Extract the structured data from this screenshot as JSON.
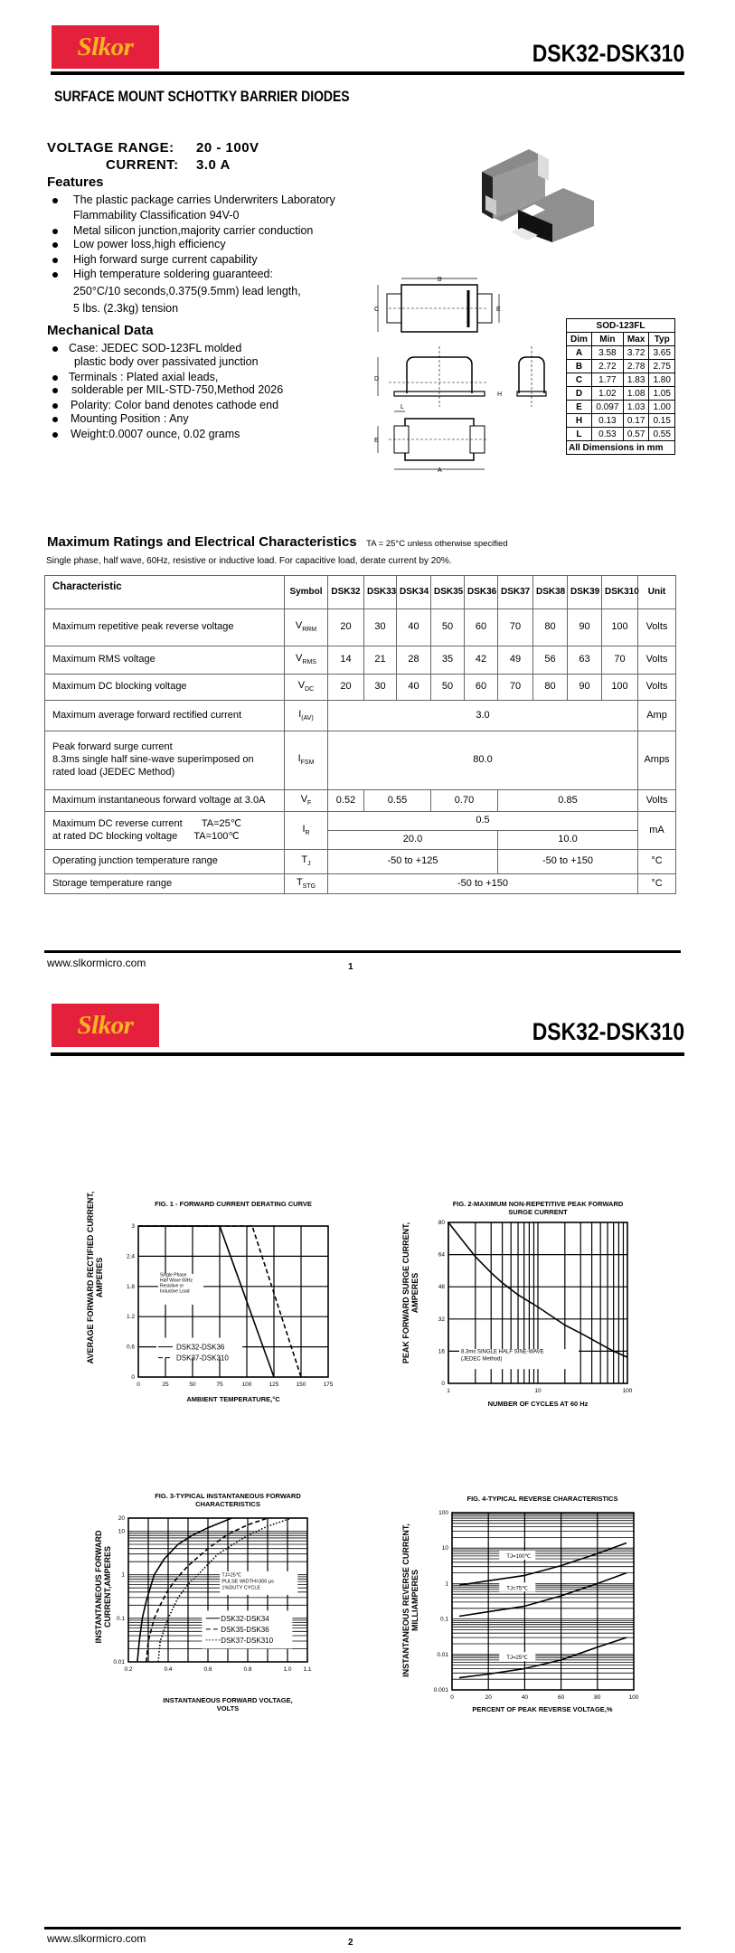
{
  "pages": [
    {
      "logo_text": "Slkor",
      "title": "DSK32-DSK310",
      "footer_url": "www.slkormicro.com",
      "page_number": "1"
    },
    {
      "logo_text": "Slkor",
      "title": "DSK32-DSK310",
      "footer_url": "www.slkormicro.com",
      "page_number": "2"
    }
  ],
  "subtitle": "SURFACE MOUNT SCHOTTKY BARRIER DIODES",
  "ratings_summary": {
    "voltage_label": "VOLTAGE  RANGE:",
    "voltage_value": "20 - 100V",
    "current_label": "CURRENT:",
    "current_value": "3.0 A"
  },
  "features": {
    "heading": "Features",
    "items": [
      "The plastic package carries Underwriters Laboratory",
      "Flammability Classification 94V-0",
      "Metal silicon junction,majority carrier conduction",
      "Low power loss,high efficiency",
      "High forward surge current capability",
      "High temperature soldering guaranteed:",
      "250°C/10 seconds,0.375(9.5mm) lead length,",
      "5 lbs. (2.3kg) tension"
    ]
  },
  "mechanical": {
    "heading": "Mechanical Data",
    "items": [
      "Case: JEDEC SOD-123FL molded",
      "plastic body over passivated junction",
      "Terminals : Plated axial leads,",
      "solderable per MIL-STD-750,Method 2026",
      "Polarity: Color band denotes cathode end",
      "Mounting Position  : Any",
      "Weight:0.0007 ounce, 0.02 grams"
    ]
  },
  "drawing": {
    "labels": {
      "A": "A",
      "B": "B",
      "C": "C",
      "D": "D",
      "E": "E",
      "H": "H",
      "L": "L"
    }
  },
  "dim_table": {
    "title": "SOD-123FL",
    "headers": [
      "Dim",
      "Min",
      "Max",
      "Typ"
    ],
    "rows": [
      [
        "A",
        "3.58",
        "3.72",
        "3.65"
      ],
      [
        "B",
        "2.72",
        "2.78",
        "2.75"
      ],
      [
        "C",
        "1.77",
        "1.83",
        "1.80"
      ],
      [
        "D",
        "1.02",
        "1.08",
        "1.05"
      ],
      [
        "E",
        "0.097",
        "1.03",
        "1.00"
      ],
      [
        "H",
        "0.13",
        "0.17",
        "0.15"
      ],
      [
        "L",
        "0.53",
        "0.57",
        "0.55"
      ]
    ],
    "footer": "All Dimensions in mm"
  },
  "max_ratings": {
    "heading": "Maximum Ratings and Electrical Characteristics",
    "condition": "TA = 25°C unless otherwise specified",
    "note": "Single phase, half wave, 60Hz, resistive or inductive load. For capacitive load, derate current by 20%.",
    "headers": [
      "Characteristic",
      "Symbol",
      "DSK32",
      "DSK33",
      "DSK34",
      "DSK35",
      "DSK36",
      "DSK37",
      "DSK38",
      "DSK39",
      "DSK310",
      "Unit"
    ],
    "rows": [
      {
        "char": [
          "Maximum repetitive peak reverse voltage"
        ],
        "sym": "V",
        "sub": "RRM",
        "unit": "Volts",
        "cells": [
          [
            [
              "20",
              1
            ],
            [
              "30",
              1
            ],
            [
              "40",
              1
            ],
            [
              "50",
              1
            ],
            [
              "60",
              1
            ],
            [
              "70",
              1
            ],
            [
              "80",
              1
            ],
            [
              "90",
              1
            ],
            [
              "100",
              1
            ]
          ]
        ]
      },
      {
        "char": [
          "Maximum RMS voltage"
        ],
        "sym": "V",
        "sub": "RMS",
        "unit": "Volts",
        "cells": [
          [
            [
              "14",
              1
            ],
            [
              "21",
              1
            ],
            [
              "28",
              1
            ],
            [
              "35",
              1
            ],
            [
              "42",
              1
            ],
            [
              "49",
              1
            ],
            [
              "56",
              1
            ],
            [
              "63",
              1
            ],
            [
              "70",
              1
            ]
          ]
        ]
      },
      {
        "char": [
          "Maximum DC blocking voltage"
        ],
        "sym": "V",
        "sub": "DC",
        "unit": "Volts",
        "cells": [
          [
            [
              "20",
              1
            ],
            [
              "30",
              1
            ],
            [
              "40",
              1
            ],
            [
              "50",
              1
            ],
            [
              "60",
              1
            ],
            [
              "70",
              1
            ],
            [
              "80",
              1
            ],
            [
              "90",
              1
            ],
            [
              "100",
              1
            ]
          ]
        ]
      },
      {
        "char": [
          "Maximum average forward rectified current"
        ],
        "sym": "I",
        "sub": "(AV)",
        "unit": "Amp",
        "cells": [
          [
            [
              "3.0",
              9
            ]
          ]
        ]
      },
      {
        "char": [
          "Peak forward surge current",
          "8.3ms single half sine-wave superimposed on",
          "rated load (JEDEC Method)"
        ],
        "sym": "I",
        "sub": "FSM",
        "unit": "Amps",
        "cells": [
          [
            [
              "80.0",
              9
            ]
          ]
        ]
      },
      {
        "char": [
          "Maximum instantaneous forward voltage at 3.0A"
        ],
        "sym": "V",
        "sub": "F",
        "unit": "Volts",
        "cells": [
          [
            [
              "0.52",
              1
            ],
            [
              "0.55",
              2
            ],
            [
              "0.70",
              2
            ],
            [
              "0.85",
              4
            ]
          ]
        ]
      },
      {
        "char": [
          "Maximum DC reverse current       TA=25℃",
          "at rated DC blocking voltage      TA=100℃"
        ],
        "sym": "I",
        "sub": "R",
        "unit": "mA",
        "cells": [
          [
            [
              "0.5",
              9
            ]
          ],
          [
            [
              "20.0",
              5
            ],
            [
              "10.0",
              4
            ]
          ]
        ]
      },
      {
        "char": [
          "Operating junction temperature range"
        ],
        "sym": "T",
        "sub": "J",
        "unit": "°C",
        "cells": [
          [
            [
              "-50 to +125",
              5
            ],
            [
              "-50 to +150",
              4
            ]
          ]
        ]
      },
      {
        "char": [
          "Storage temperature range"
        ],
        "sym": "T",
        "sub": "STG",
        "unit": "°C",
        "cells": [
          [
            [
              "-50 to +150",
              9
            ]
          ]
        ]
      }
    ]
  },
  "chart_data": [
    {
      "type": "line",
      "title": "FIG. 1 - FORWARD CURRENT DERATING CURVE",
      "xlabel": "AMBIENT TEMPERATURE,°C",
      "ylabel": [
        "AVERAGE FORWARD RECTIFIED CURRENT,",
        "AMPERES"
      ],
      "xlim": [
        0,
        175
      ],
      "ylim": [
        0,
        3
      ],
      "xscale": "linear",
      "yscale": "linear",
      "xticks": [
        "0",
        "25",
        "50",
        "75",
        "100",
        "125",
        "150",
        "175"
      ],
      "yticks": [
        "0",
        "0.6",
        "1.2",
        "1.8",
        "2.4",
        "3"
      ],
      "grid": true,
      "annotation": [
        "Single Phase",
        "Half Wave 60Hz",
        "Resistive or",
        "Inductive Load"
      ],
      "legend_placement": "bottom-left",
      "series": [
        {
          "name": "DSK32-DSK36",
          "style": "solid",
          "x": [
            0,
            75,
            125
          ],
          "y": [
            3,
            3,
            0
          ]
        },
        {
          "name": "DSK37-DSK310",
          "style": "dashed",
          "x": [
            0,
            105,
            150
          ],
          "y": [
            3,
            3,
            0
          ]
        }
      ]
    },
    {
      "type": "line",
      "title": [
        "FIG. 2-MAXIMUM NON-REPETITIVE PEAK FORWARD",
        "SURGE CURRENT"
      ],
      "xlabel": "NUMBER OF CYCLES AT 60 Hz",
      "ylabel": [
        "PEAK  FORWARD SURGE CURRENT,",
        "AMPERES"
      ],
      "xlim": [
        1,
        100
      ],
      "ylim": [
        0,
        80
      ],
      "xscale": "log",
      "yscale": "linear",
      "xticks": [
        "1",
        "10",
        "100"
      ],
      "yticks": [
        "0",
        "16",
        "32",
        "48",
        "64",
        "80"
      ],
      "grid": true,
      "annotation": [
        "8.3ms SINGLE HALF SINE-WAVE",
        "(JEDEC Method)"
      ],
      "series": [
        {
          "style": "solid",
          "x": [
            1,
            1.5,
            2,
            3,
            4,
            6,
            10,
            20,
            30,
            50,
            70,
            100
          ],
          "y": [
            80,
            70,
            63,
            55,
            50,
            44,
            38,
            29,
            25,
            19.5,
            16,
            13
          ]
        }
      ]
    },
    {
      "type": "line",
      "title": [
        "FIG. 3-TYPICAL INSTANTANEOUS FORWARD",
        "CHARACTERISTICS"
      ],
      "xlabel": [
        "INSTANTANEOUS FORWARD VOLTAGE,",
        "VOLTS"
      ],
      "ylabel": [
        "INSTANTANEOUS FORWARD",
        "CURRENT,AMPERES"
      ],
      "xlim": [
        0.2,
        1.1
      ],
      "ylim": [
        0.01,
        20
      ],
      "xscale": "linear",
      "yscale": "log",
      "xticks": [
        "0.2",
        "0.4",
        "0.6",
        "0.8",
        "1.0",
        "1.1"
      ],
      "yticks": [
        "0.01",
        "0.1",
        "1",
        "10",
        "20"
      ],
      "grid": true,
      "annotation": [
        "TJ=25℃",
        "PULSE WIDTH=300 μs",
        "1%DUTY CYCLE"
      ],
      "legend_placement": "bottom-right",
      "series": [
        {
          "name": "DSK32-DSK34",
          "style": "solid",
          "x": [
            0.245,
            0.255,
            0.27,
            0.29,
            0.33,
            0.38,
            0.45,
            0.52,
            0.6,
            0.72
          ],
          "y": [
            0.01,
            0.03,
            0.1,
            0.25,
            1,
            2.3,
            5,
            8,
            12,
            20
          ]
        },
        {
          "name": "DSK35-DSK36",
          "style": "dashed",
          "x": [
            0.29,
            0.3,
            0.33,
            0.36,
            0.4,
            0.45,
            0.5,
            0.6,
            0.7,
            0.8,
            0.9
          ],
          "y": [
            0.01,
            0.03,
            0.1,
            0.2,
            0.45,
            0.9,
            1.6,
            4,
            8.5,
            14,
            20
          ]
        },
        {
          "name": "DSK37-DSK310",
          "style": "dotted",
          "x": [
            0.35,
            0.36,
            0.4,
            0.45,
            0.5,
            0.55,
            0.65,
            0.8,
            0.9,
            1.02
          ],
          "y": [
            0.01,
            0.03,
            0.1,
            0.3,
            0.6,
            1,
            3,
            8,
            13,
            20
          ]
        }
      ]
    },
    {
      "type": "line",
      "title": "FIG. 4-TYPICAL REVERSE CHARACTERISTICS",
      "xlabel": "PERCENT OF PEAK REVERSE VOLTAGE,%",
      "ylabel": [
        "INSTANTANEOUS REVERSE CURRENT,",
        "MILLIAMPERES"
      ],
      "xlim": [
        0,
        100
      ],
      "ylim": [
        0.001,
        100
      ],
      "xscale": "linear",
      "yscale": "log",
      "xticks": [
        "0",
        "20",
        "40",
        "60",
        "80",
        "100"
      ],
      "yticks": [
        "0.001",
        "0.01",
        "0.1",
        "1",
        "10",
        "100"
      ],
      "grid": true,
      "series": [
        {
          "name": "TJ=100℃",
          "style": "solid",
          "x": [
            4,
            20,
            40,
            60,
            80,
            96
          ],
          "y": [
            0.9,
            1.2,
            1.7,
            3.2,
            7,
            14
          ]
        },
        {
          "name": "TJ=75℃",
          "style": "solid",
          "x": [
            4,
            20,
            40,
            60,
            80,
            96
          ],
          "y": [
            0.12,
            0.16,
            0.23,
            0.45,
            1,
            2
          ]
        },
        {
          "name": "TJ=25℃",
          "style": "solid",
          "x": [
            4,
            20,
            40,
            60,
            80,
            96
          ],
          "y": [
            0.0022,
            0.0028,
            0.004,
            0.007,
            0.016,
            0.03
          ]
        }
      ]
    }
  ],
  "colors": {
    "logo_bg": "#e5203c",
    "logo_text": "#f5b423"
  }
}
